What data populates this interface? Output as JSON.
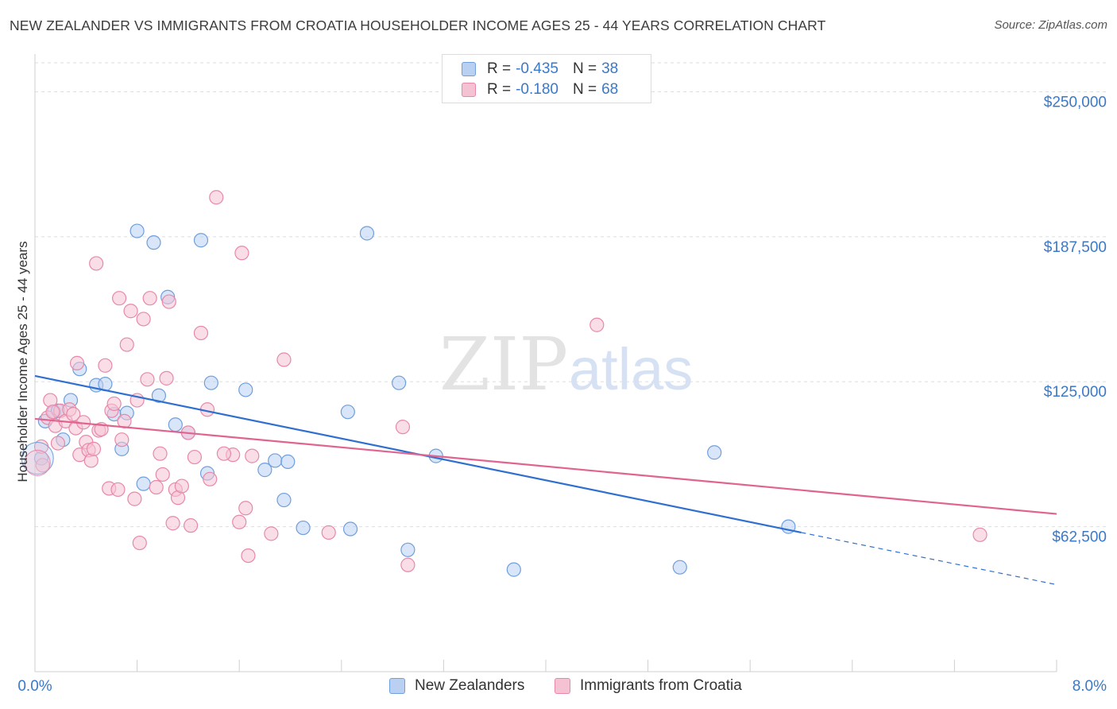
{
  "title": "NEW ZEALANDER VS IMMIGRANTS FROM CROATIA HOUSEHOLDER INCOME AGES 25 - 44 YEARS CORRELATION CHART",
  "source": "Source: ZipAtlas.com",
  "watermark": {
    "zip": "ZIP",
    "atlas": "atlas"
  },
  "legend": {
    "rows": [
      {
        "r_label": "R =",
        "r_value": "-0.435",
        "n_label": "N =",
        "n_value": "38"
      },
      {
        "r_label": "R =",
        "r_value": "-0.180",
        "n_label": "N =",
        "n_value": "68"
      }
    ]
  },
  "chart_data": {
    "type": "scatter",
    "title": "NEW ZEALANDER VS IMMIGRANTS FROM CROATIA HOUSEHOLDER INCOME AGES 25 - 44 YEARS CORRELATION CHART",
    "xlabel": "",
    "ylabel": "Householder Income Ages 25 - 44 years",
    "xlim": [
      0,
      8
    ],
    "ylim": [
      0,
      262500
    ],
    "x_tick_labels": [
      "0.0%",
      "8.0%"
    ],
    "y_ticks": [
      62500,
      125000,
      187500,
      250000
    ],
    "y_tick_labels": [
      "$62,500",
      "$125,000",
      "$187,500",
      "$250,000"
    ],
    "grid": true,
    "legend_position": "top-center",
    "series": [
      {
        "name": "New Zealanders",
        "color": "#6f9fdc",
        "fill": "#b9d0f2",
        "r": "-0.435",
        "n": "38",
        "trend": {
          "x0": 0.0,
          "y0": 127500,
          "x1": 6.0,
          "y1": 60000,
          "dash_to_x": 8.0,
          "dash_to_y": 37500
        },
        "points": [
          [
            0.08,
            108000
          ],
          [
            0.15,
            112000
          ],
          [
            0.22,
            100000
          ],
          [
            0.28,
            117000
          ],
          [
            0.35,
            130500
          ],
          [
            0.48,
            123500
          ],
          [
            0.55,
            124000
          ],
          [
            0.62,
            111000
          ],
          [
            0.68,
            96000
          ],
          [
            0.72,
            111500
          ],
          [
            0.8,
            190000
          ],
          [
            0.85,
            81000
          ],
          [
            0.93,
            185000
          ],
          [
            0.97,
            119000
          ],
          [
            1.04,
            161500
          ],
          [
            1.1,
            106500
          ],
          [
            1.2,
            103000
          ],
          [
            1.3,
            186000
          ],
          [
            1.35,
            85500
          ],
          [
            1.38,
            124500
          ],
          [
            1.65,
            121500
          ],
          [
            1.8,
            87000
          ],
          [
            1.88,
            91000
          ],
          [
            1.95,
            74000
          ],
          [
            1.98,
            90500
          ],
          [
            2.1,
            62000
          ],
          [
            2.45,
            112000
          ],
          [
            2.47,
            61500
          ],
          [
            2.6,
            189000
          ],
          [
            2.85,
            124500
          ],
          [
            2.92,
            52500
          ],
          [
            3.14,
            93000
          ],
          [
            3.75,
            44000
          ],
          [
            5.05,
            45000
          ],
          [
            5.32,
            94500
          ],
          [
            5.9,
            62500
          ],
          [
            0.18,
            112500
          ],
          [
            0.05,
            92000
          ]
        ]
      },
      {
        "name": "Immigrants from Croatia",
        "color": "#e888a8",
        "fill": "#f5c2d3",
        "r": "-0.180",
        "n": "68",
        "trend": {
          "x0": 0.0,
          "y0": 109000,
          "x1": 8.0,
          "y1": 68000
        },
        "points": [
          [
            0.05,
            97000
          ],
          [
            0.06,
            89000
          ],
          [
            0.1,
            109500
          ],
          [
            0.12,
            117000
          ],
          [
            0.16,
            106000
          ],
          [
            0.18,
            98500
          ],
          [
            0.2,
            112500
          ],
          [
            0.24,
            108000
          ],
          [
            0.27,
            113000
          ],
          [
            0.3,
            111000
          ],
          [
            0.32,
            105000
          ],
          [
            0.35,
            93500
          ],
          [
            0.38,
            107500
          ],
          [
            0.4,
            99000
          ],
          [
            0.42,
            95500
          ],
          [
            0.44,
            91000
          ],
          [
            0.46,
            96000
          ],
          [
            0.48,
            176000
          ],
          [
            0.5,
            104000
          ],
          [
            0.52,
            104500
          ],
          [
            0.55,
            132000
          ],
          [
            0.58,
            79000
          ],
          [
            0.6,
            112500
          ],
          [
            0.62,
            115500
          ],
          [
            0.65,
            78500
          ],
          [
            0.66,
            161000
          ],
          [
            0.68,
            100000
          ],
          [
            0.7,
            108000
          ],
          [
            0.72,
            141000
          ],
          [
            0.75,
            155500
          ],
          [
            0.78,
            74500
          ],
          [
            0.8,
            117000
          ],
          [
            0.82,
            55500
          ],
          [
            0.85,
            152000
          ],
          [
            0.88,
            126000
          ],
          [
            0.9,
            161000
          ],
          [
            0.95,
            79500
          ],
          [
            0.98,
            94000
          ],
          [
            1.0,
            85000
          ],
          [
            1.03,
            126500
          ],
          [
            1.05,
            159500
          ],
          [
            1.08,
            64000
          ],
          [
            1.1,
            78500
          ],
          [
            1.12,
            75000
          ],
          [
            1.15,
            80000
          ],
          [
            1.2,
            103000
          ],
          [
            1.22,
            63000
          ],
          [
            1.25,
            92500
          ],
          [
            1.3,
            146000
          ],
          [
            1.35,
            113000
          ],
          [
            1.37,
            83000
          ],
          [
            1.42,
            204500
          ],
          [
            1.55,
            93500
          ],
          [
            1.6,
            64500
          ],
          [
            1.62,
            180500
          ],
          [
            1.65,
            70500
          ],
          [
            1.67,
            50000
          ],
          [
            1.7,
            93000
          ],
          [
            1.85,
            59500
          ],
          [
            1.95,
            134500
          ],
          [
            2.3,
            60000
          ],
          [
            2.88,
            105500
          ],
          [
            2.92,
            46000
          ],
          [
            4.4,
            149500
          ],
          [
            7.4,
            59000
          ],
          [
            0.33,
            133000
          ],
          [
            0.14,
            112000
          ],
          [
            1.48,
            94000
          ]
        ]
      }
    ]
  }
}
